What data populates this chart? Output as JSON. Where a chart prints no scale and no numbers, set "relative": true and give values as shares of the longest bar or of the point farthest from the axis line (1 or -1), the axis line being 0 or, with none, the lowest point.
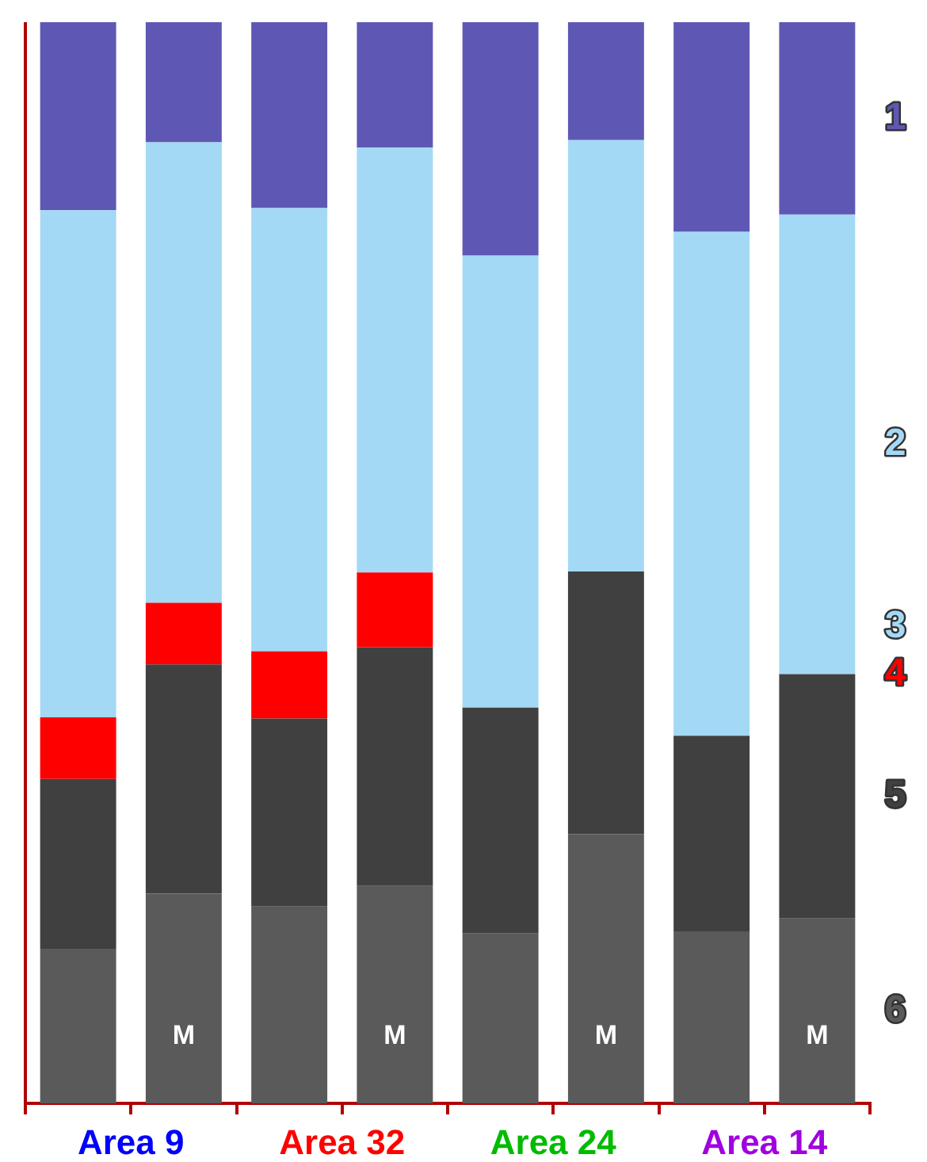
{
  "chart_data": {
    "type": "bar",
    "stacked": true,
    "relative": true,
    "legend": false,
    "grid": false,
    "categories": [
      "Area 9",
      null,
      "Area 32",
      null,
      "Area 24",
      null,
      "Area 14",
      null
    ],
    "annotations": [
      "M",
      "M",
      "M",
      "M"
    ],
    "tick_labels": "x",
    "series": [
      {
        "name": "6",
        "color": "#5a5a5a",
        "values": [
          0.143,
          0.194,
          0.182,
          0.201,
          0.157,
          0.249,
          0.159,
          0.171
        ]
      },
      {
        "name": "5",
        "color": "#404040",
        "values": [
          0.157,
          0.212,
          0.174,
          0.221,
          0.209,
          0.243,
          0.181,
          0.226
        ]
      },
      {
        "name": "4",
        "color": "#ff0000",
        "values": [
          0.057,
          0.057,
          0.062,
          0.069,
          0,
          0,
          0,
          0
        ]
      },
      {
        "name": "3",
        "color": "#a3d9f5",
        "values": [
          0,
          0,
          0,
          0,
          0,
          0,
          0,
          0
        ]
      },
      {
        "name": "2",
        "color": "#a3d9f5",
        "values": [
          0.469,
          0.426,
          0.41,
          0.393,
          0.418,
          0.399,
          0.466,
          0.425
        ]
      },
      {
        "name": "1",
        "color": "#5e58b4",
        "values": [
          0.174,
          0.111,
          0.172,
          0.116,
          0.216,
          0.109,
          0.194,
          0.178
        ]
      }
    ]
  }
}
